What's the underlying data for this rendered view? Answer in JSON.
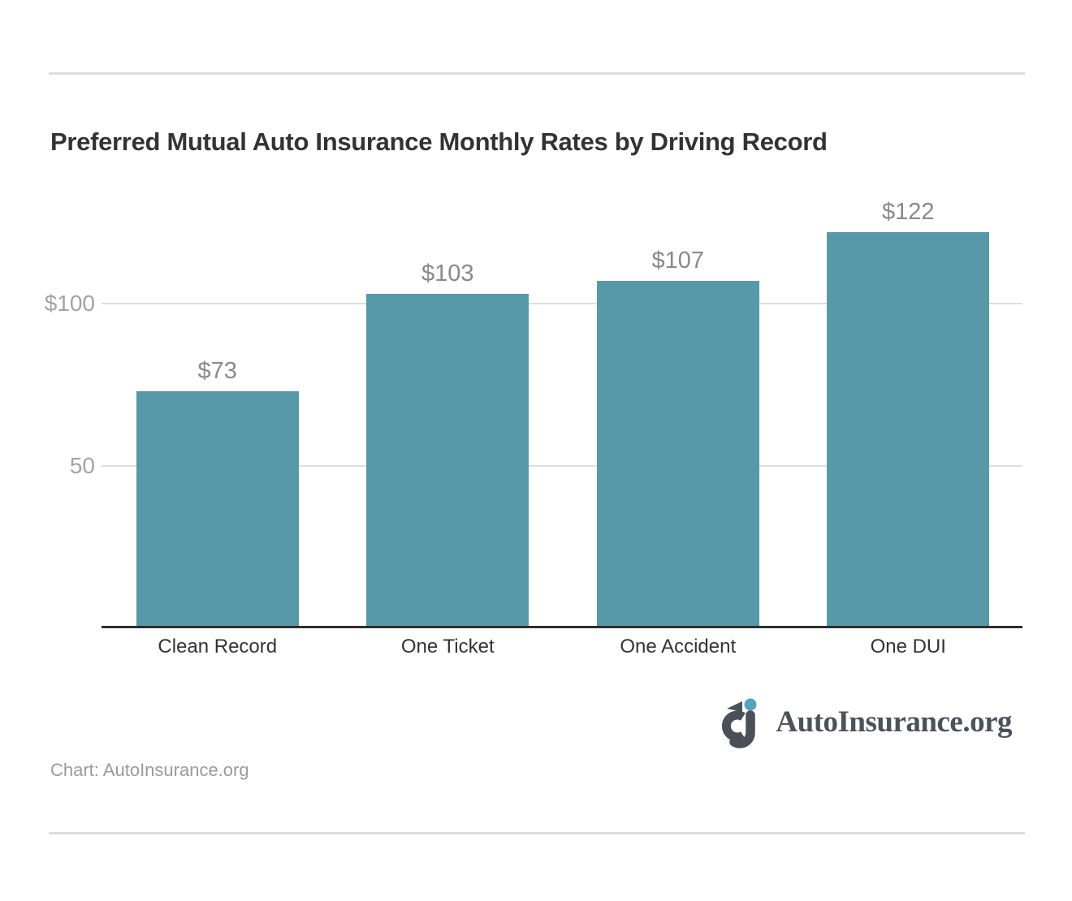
{
  "page": {
    "title": "Preferred Mutual Auto Insurance Monthly Rates by Driving Record",
    "credit": "Chart: AutoInsurance.org",
    "logo_text": "AutoInsurance.org"
  },
  "colors": {
    "bar": "#5899a9",
    "logo_dot": "#57a3bd",
    "logo_mark": "#4b4f57",
    "logo_text": "#4d525a",
    "title": "#333333",
    "data_label": "#898989",
    "y_tick_label": "#a3a3a3",
    "category_label": "#333333",
    "credit": "#9a9a9a",
    "gridline": "#dddddd",
    "axis_line": "#2e2e2e",
    "divider": "#dddddd"
  },
  "chart_data": {
    "type": "bar",
    "title": "Preferred Mutual Auto Insurance Monthly Rates by Driving Record",
    "categories": [
      "Clean Record",
      "One Ticket",
      "One Accident",
      "One DUI"
    ],
    "values": [
      73,
      103,
      107,
      122
    ],
    "data_labels": [
      "$73",
      "$103",
      "$107",
      "$122"
    ],
    "y_ticks": [
      {
        "value": 50,
        "label": "50"
      },
      {
        "value": 100,
        "label": "$100"
      }
    ],
    "xlabel": "",
    "ylabel": "",
    "ylim": [
      0,
      130
    ],
    "grid": "horizontal-only",
    "legend": "none",
    "source": "Chart: AutoInsurance.org"
  }
}
